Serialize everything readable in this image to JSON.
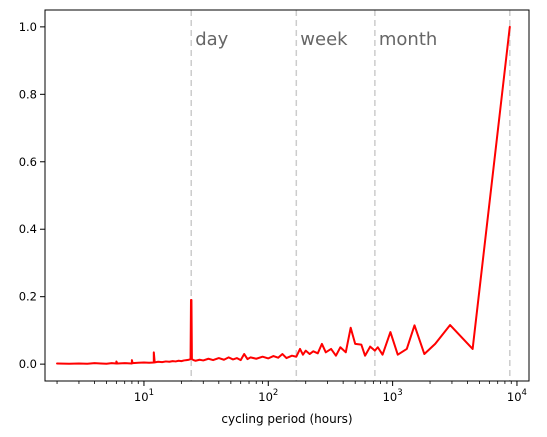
{
  "chart_data": {
    "type": "line",
    "xlabel": "cycling period (hours)",
    "ylabel": "",
    "x_scale": "log",
    "xlim": [
      1.6,
      12500
    ],
    "ylim": [
      -0.05,
      1.05
    ],
    "grid": false,
    "y_ticks": [
      {
        "value": 0.0,
        "label": "0.0"
      },
      {
        "value": 0.2,
        "label": "0.2"
      },
      {
        "value": 0.4,
        "label": "0.4"
      },
      {
        "value": 0.6,
        "label": "0.6"
      },
      {
        "value": 0.8,
        "label": "0.8"
      },
      {
        "value": 1.0,
        "label": "1.0"
      }
    ],
    "x_major_ticks": [
      {
        "value": 10,
        "base": "10",
        "exp": "1"
      },
      {
        "value": 100,
        "base": "10",
        "exp": "2"
      },
      {
        "value": 1000,
        "base": "10",
        "exp": "3"
      },
      {
        "value": 10000,
        "base": "10",
        "exp": "4"
      }
    ],
    "vlines": [
      {
        "x": 24,
        "label": "day"
      },
      {
        "x": 168,
        "label": "week"
      },
      {
        "x": 720,
        "label": "month"
      },
      {
        "x": 8760,
        "label": ""
      }
    ],
    "series": [
      {
        "color": "#ff0000",
        "points": [
          [
            2.0,
            0.002
          ],
          [
            2.5,
            0.001
          ],
          [
            3.0,
            0.002
          ],
          [
            3.5,
            0.001
          ],
          [
            4.0,
            0.003
          ],
          [
            4.5,
            0.002
          ],
          [
            5.0,
            0.001
          ],
          [
            5.5,
            0.003
          ],
          [
            6.0,
            0.002
          ],
          [
            6.0,
            0.008
          ],
          [
            6.1,
            0.002
          ],
          [
            7.0,
            0.003
          ],
          [
            8.0,
            0.002
          ],
          [
            8.0,
            0.012
          ],
          [
            8.1,
            0.003
          ],
          [
            9.0,
            0.004
          ],
          [
            10.0,
            0.005
          ],
          [
            11.0,
            0.004
          ],
          [
            12.0,
            0.005
          ],
          [
            12.0,
            0.035
          ],
          [
            12.2,
            0.005
          ],
          [
            13.0,
            0.007
          ],
          [
            14.0,
            0.006
          ],
          [
            15.0,
            0.008
          ],
          [
            16.0,
            0.007
          ],
          [
            17.0,
            0.009
          ],
          [
            18.0,
            0.008
          ],
          [
            19.0,
            0.01
          ],
          [
            20.0,
            0.009
          ],
          [
            21.0,
            0.011
          ],
          [
            22.0,
            0.012
          ],
          [
            23.0,
            0.013
          ],
          [
            23.7,
            0.015
          ],
          [
            23.9,
            0.19
          ],
          [
            24.0,
            0.05
          ],
          [
            24.1,
            0.19
          ],
          [
            24.3,
            0.015
          ],
          [
            25.0,
            0.012
          ],
          [
            26.0,
            0.01
          ],
          [
            28.0,
            0.013
          ],
          [
            30.0,
            0.011
          ],
          [
            33.0,
            0.016
          ],
          [
            36.0,
            0.012
          ],
          [
            40.0,
            0.018
          ],
          [
            44.0,
            0.013
          ],
          [
            48.0,
            0.02
          ],
          [
            52.0,
            0.014
          ],
          [
            56.0,
            0.018
          ],
          [
            60.0,
            0.012
          ],
          [
            64.0,
            0.03
          ],
          [
            68.0,
            0.015
          ],
          [
            72.0,
            0.02
          ],
          [
            80.0,
            0.016
          ],
          [
            90.0,
            0.022
          ],
          [
            100.0,
            0.017
          ],
          [
            110.0,
            0.024
          ],
          [
            120.0,
            0.019
          ],
          [
            130.0,
            0.03
          ],
          [
            140.0,
            0.018
          ],
          [
            155.0,
            0.025
          ],
          [
            168.0,
            0.022
          ],
          [
            180.0,
            0.045
          ],
          [
            190.0,
            0.028
          ],
          [
            200.0,
            0.04
          ],
          [
            215.0,
            0.03
          ],
          [
            230.0,
            0.038
          ],
          [
            250.0,
            0.032
          ],
          [
            270.0,
            0.06
          ],
          [
            290.0,
            0.035
          ],
          [
            320.0,
            0.045
          ],
          [
            350.0,
            0.025
          ],
          [
            380.0,
            0.05
          ],
          [
            420.0,
            0.035
          ],
          [
            460.0,
            0.108
          ],
          [
            500.0,
            0.06
          ],
          [
            560.0,
            0.058
          ],
          [
            600.0,
            0.025
          ],
          [
            660.0,
            0.052
          ],
          [
            720.0,
            0.04
          ],
          [
            760.0,
            0.05
          ],
          [
            830.0,
            0.028
          ],
          [
            960.0,
            0.095
          ],
          [
            1100.0,
            0.028
          ],
          [
            1300.0,
            0.045
          ],
          [
            1500.0,
            0.115
          ],
          [
            1800.0,
            0.03
          ],
          [
            2200.0,
            0.06
          ],
          [
            2900.0,
            0.116
          ],
          [
            4400.0,
            0.045
          ],
          [
            8760.0,
            1.0
          ]
        ]
      }
    ]
  }
}
